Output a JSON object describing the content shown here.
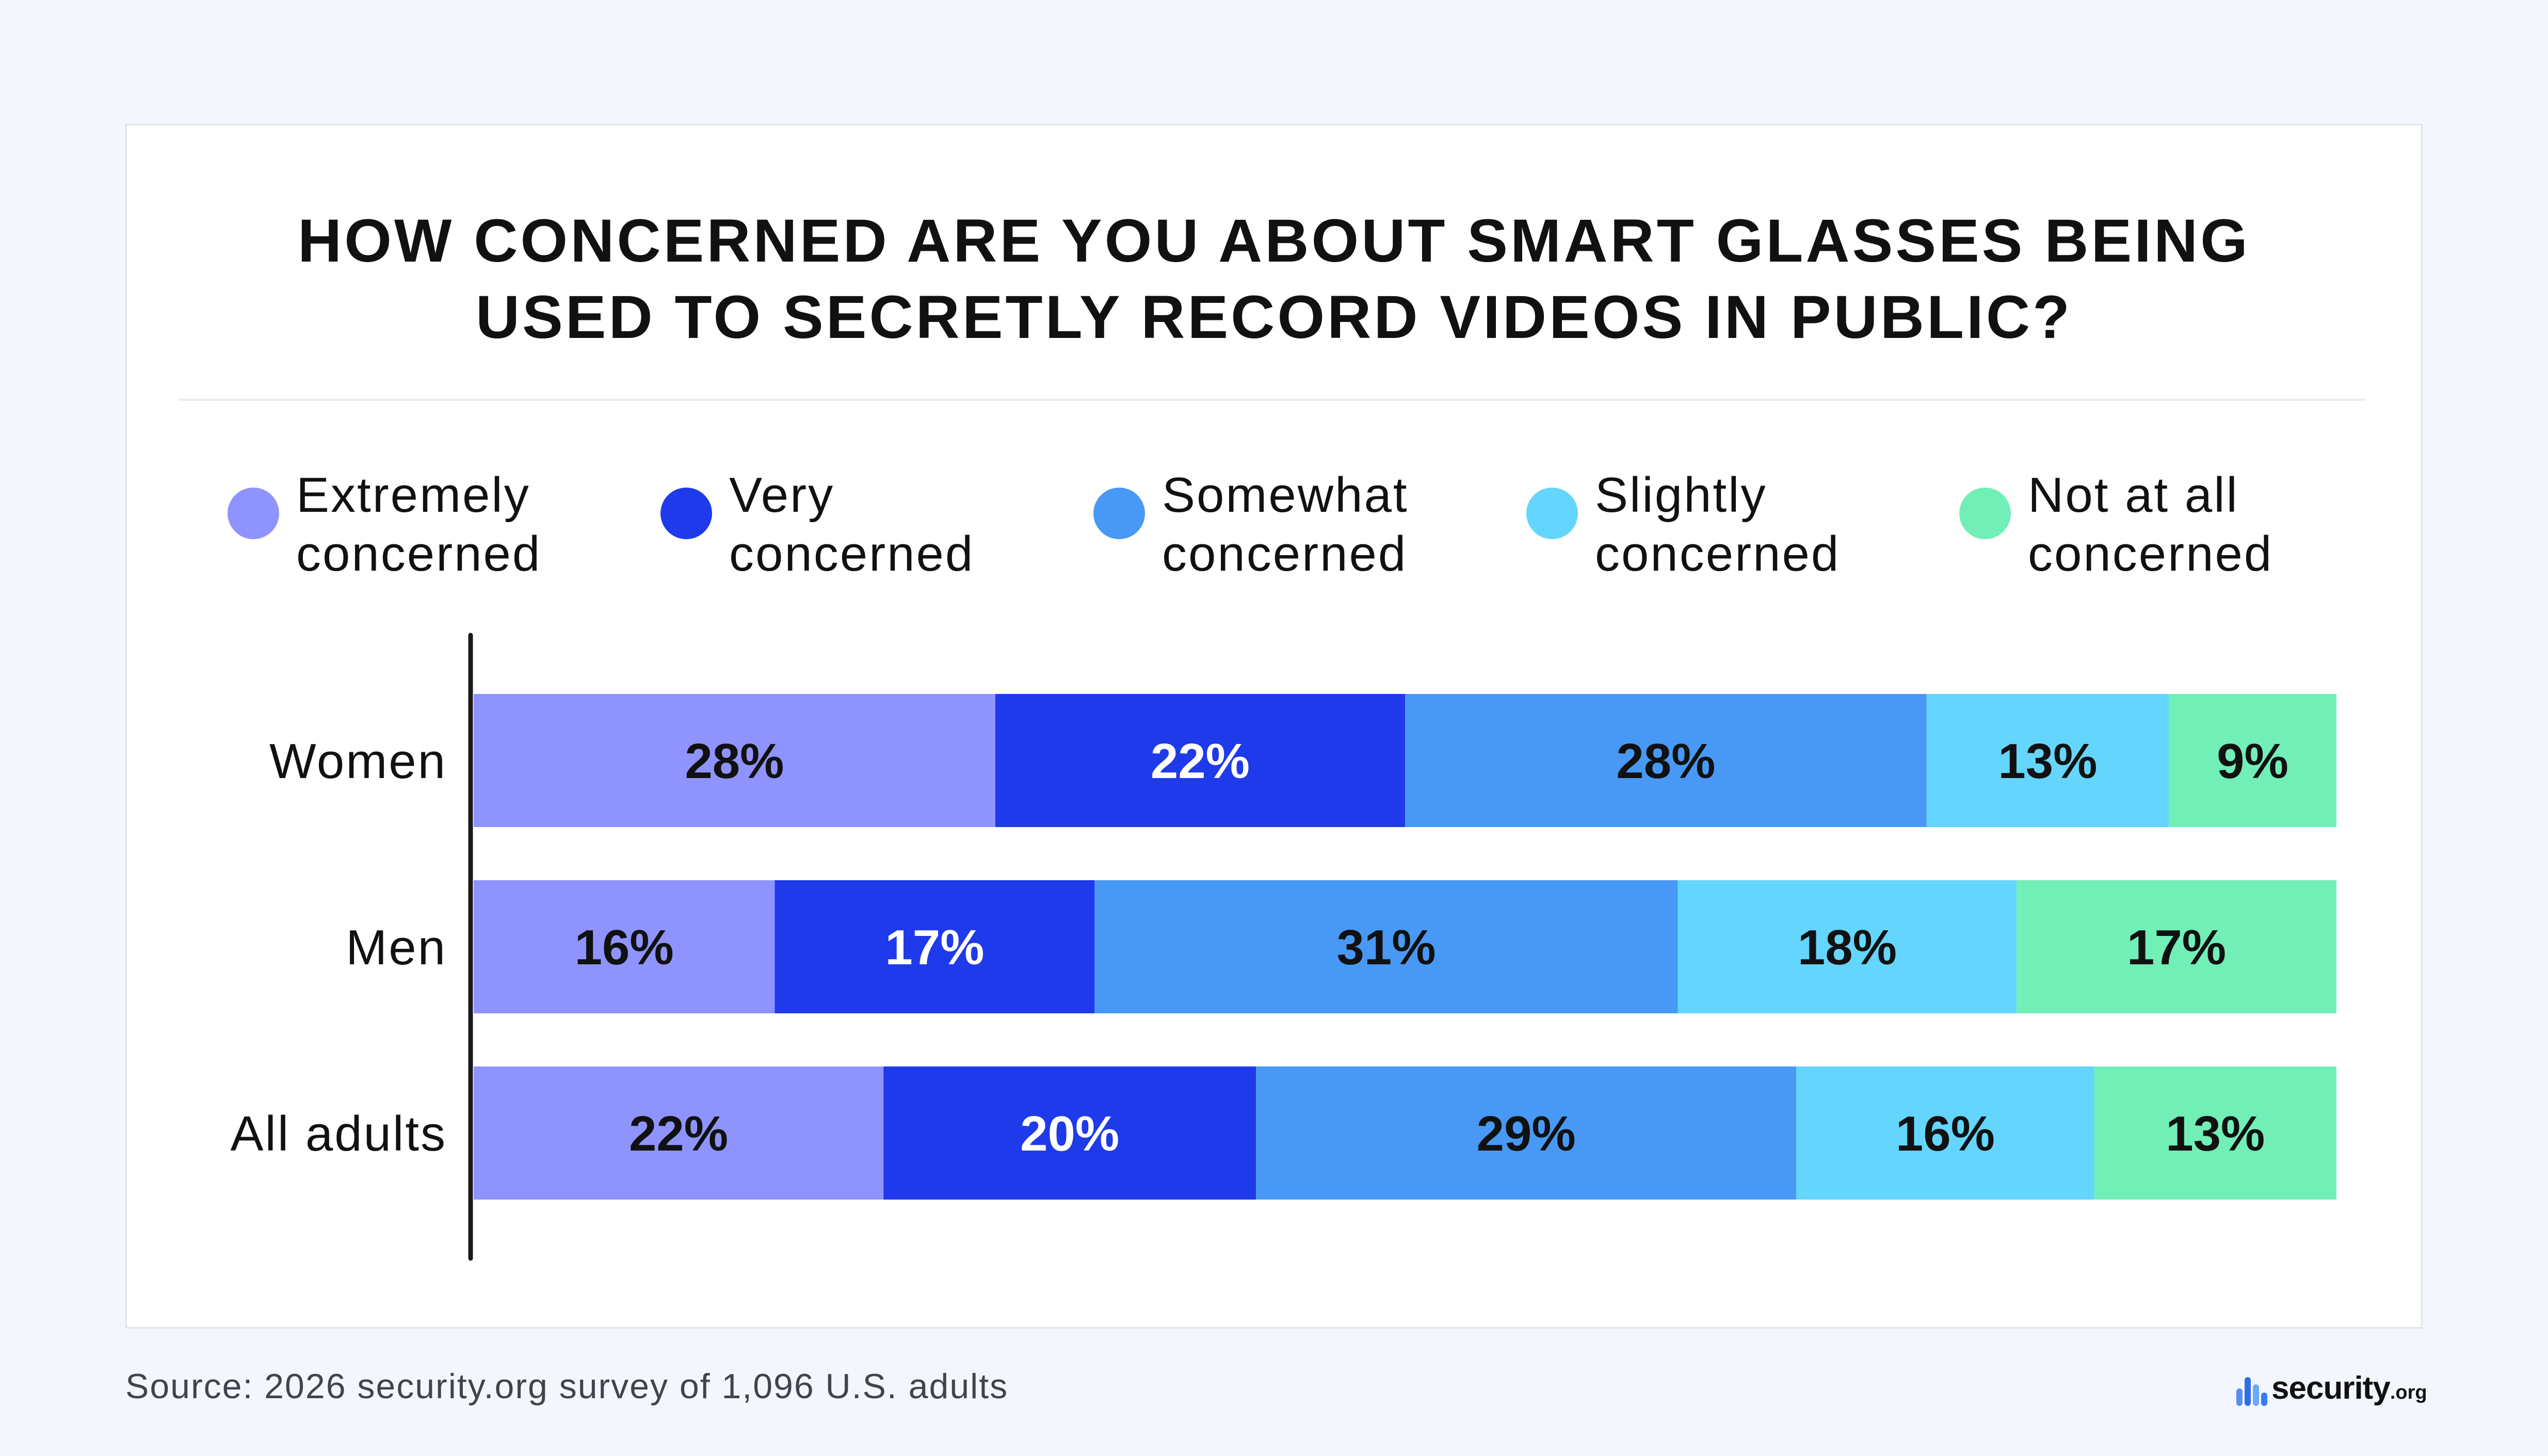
{
  "source": "Source: 2026 security.org survey of 1,096 U.S. adults",
  "brand": {
    "name": "security",
    "suffix": ".org",
    "logo_colors": [
      "#5b8def",
      "#2f6fe4",
      "#6aa8ff",
      "#3b7bf0"
    ]
  },
  "chart_data": {
    "type": "bar",
    "orientation": "horizontal",
    "stacked": true,
    "title": "HOW CONCERNED ARE YOU ABOUT SMART GLASSES BEING\nUSED TO SECRETLY RECORD VIDEOS IN PUBLIC?",
    "legend_position": "top",
    "categories": [
      "Women",
      "Men",
      "All adults"
    ],
    "xlim": [
      0,
      100
    ],
    "series": [
      {
        "name": "Extremely\nconcerned",
        "color": "#8f93fd",
        "label_color": "#111111",
        "values": [
          28,
          16,
          22
        ],
        "labels": [
          "28%",
          "16%",
          "22%"
        ]
      },
      {
        "name": "Very\nconcerned",
        "color": "#1e3aea",
        "label_color": "#ffffff",
        "values": [
          22,
          17,
          20
        ],
        "labels": [
          "22%",
          "17%",
          "20%"
        ]
      },
      {
        "name": "Somewhat\nconcerned",
        "color": "#4799f5",
        "label_color": "#111111",
        "values": [
          28,
          31,
          29
        ],
        "labels": [
          "28%",
          "31%",
          "29%"
        ]
      },
      {
        "name": "Slightly\nconcerned",
        "color": "#64d5fc",
        "label_color": "#111111",
        "values": [
          13,
          18,
          16
        ],
        "labels": [
          "13%",
          "18%",
          "16%"
        ]
      },
      {
        "name": "Not at all\nconcerned",
        "color": "#71efb7",
        "label_color": "#111111",
        "values": [
          9,
          17,
          13
        ],
        "labels": [
          "9%",
          "17%",
          "13%"
        ]
      }
    ]
  }
}
